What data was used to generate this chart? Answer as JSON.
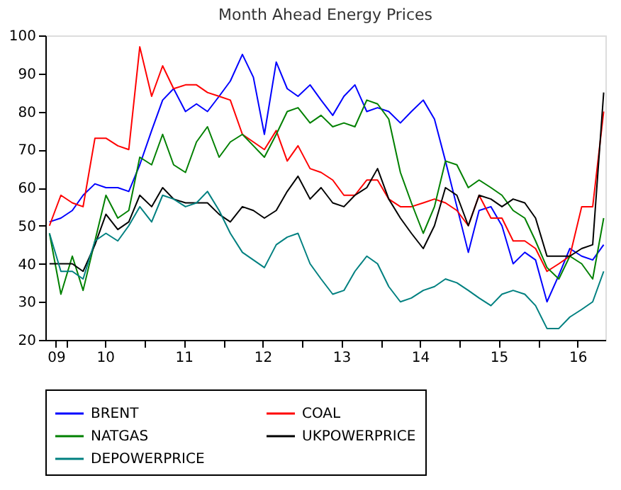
{
  "chart_data": {
    "type": "line",
    "title": "Month Ahead Energy Prices",
    "x": [
      "2009-10-16",
      "2009-12-08",
      "2010-01-30",
      "2010-03-21",
      "2010-05-15",
      "2010-07-05",
      "2010-08-29",
      "2010-10-19",
      "2010-12-09",
      "2011-02-02",
      "2011-03-25",
      "2011-05-15",
      "2011-07-09",
      "2011-08-29",
      "2011-10-19",
      "2011-12-12",
      "2012-02-02",
      "2012-03-29",
      "2012-05-19",
      "2012-07-09",
      "2012-09-02",
      "2012-10-23",
      "2012-12-12",
      "2013-02-06",
      "2013-03-29",
      "2013-05-22",
      "2013-07-13",
      "2013-09-02",
      "2013-10-27",
      "2013-12-16",
      "2014-02-06",
      "2014-04-01",
      "2014-05-22",
      "2014-07-16",
      "2014-09-06",
      "2014-10-27",
      "2014-12-19",
      "2015-02-10",
      "2015-04-01",
      "2015-05-26",
      "2015-07-16",
      "2015-09-06",
      "2015-10-30",
      "2015-12-19",
      "2016-02-10",
      "2016-04-05",
      "2016-05-26",
      "2016-07-20",
      "2016-09-09",
      "2016-10-30"
    ],
    "series": [
      {
        "name": "BRENT",
        "color": "#0000ff",
        "values": [
          51,
          52,
          54,
          58,
          61,
          60,
          60,
          59,
          66,
          75,
          83,
          86,
          80,
          82,
          80,
          84,
          88,
          95,
          89,
          74,
          93,
          86,
          84,
          87,
          83,
          79,
          84,
          87,
          80,
          81,
          80,
          77,
          80,
          83,
          78,
          67,
          55,
          43,
          54,
          55,
          50,
          40,
          43,
          41,
          30,
          37,
          44,
          42,
          41,
          45
        ]
      },
      {
        "name": "COAL",
        "color": "#ff0000",
        "values": [
          50,
          58,
          56,
          55,
          73,
          73,
          71,
          70,
          97,
          84,
          92,
          86,
          87,
          87,
          85,
          84,
          83,
          74,
          72,
          70,
          75,
          67,
          71,
          65,
          64,
          62,
          58,
          58,
          62,
          62,
          57,
          55,
          55,
          56,
          57,
          56,
          54,
          50,
          58,
          52,
          52,
          46,
          46,
          44,
          38,
          40,
          42,
          55,
          55,
          80
        ]
      },
      {
        "name": "NATGAS",
        "color": "#008000",
        "values": [
          48,
          32,
          42,
          33,
          46,
          58,
          52,
          54,
          68,
          66,
          74,
          66,
          64,
          72,
          76,
          68,
          72,
          74,
          71,
          68,
          74,
          80,
          81,
          77,
          79,
          76,
          77,
          76,
          83,
          82,
          78,
          64,
          56,
          48,
          55,
          67,
          66,
          60,
          62,
          60,
          58,
          54,
          52,
          46,
          39,
          36,
          42,
          40,
          36,
          52
        ]
      },
      {
        "name": "UKPOWERPRICE",
        "color": "#000000",
        "values": [
          40,
          40,
          40,
          38,
          45,
          53,
          49,
          51,
          58,
          55,
          60,
          57,
          56,
          56,
          56,
          53,
          51,
          55,
          54,
          52,
          54,
          59,
          63,
          57,
          60,
          56,
          55,
          58,
          60,
          65,
          57,
          52,
          48,
          44,
          50,
          60,
          58,
          50,
          58,
          57,
          55,
          57,
          56,
          52,
          42,
          42,
          42,
          44,
          45,
          85
        ]
      },
      {
        "name": "DEPOWERPRICE",
        "color": "#008080",
        "values": [
          48,
          38,
          38,
          36,
          46,
          48,
          46,
          50,
          55,
          51,
          58,
          57,
          55,
          56,
          59,
          54,
          48,
          43,
          41,
          39,
          45,
          47,
          48,
          40,
          36,
          32,
          33,
          38,
          42,
          40,
          34,
          30,
          31,
          33,
          34,
          36,
          35,
          33,
          31,
          29,
          32,
          33,
          32,
          29,
          23,
          23,
          26,
          28,
          30,
          38
        ]
      }
    ],
    "xlim": [
      "2009-09-27",
      "2016-11-07"
    ],
    "xticks": [
      {
        "value": "2009-11-15",
        "label": "09"
      },
      {
        "value": "2010-01-01",
        "label": null
      },
      {
        "value": "2010-07-01",
        "label": "10"
      },
      {
        "value": "2011-01-01",
        "label": null
      },
      {
        "value": "2011-07-01",
        "label": "11"
      },
      {
        "value": "2012-01-01",
        "label": null
      },
      {
        "value": "2012-07-01",
        "label": "12"
      },
      {
        "value": "2013-01-01",
        "label": null
      },
      {
        "value": "2013-07-01",
        "label": "13"
      },
      {
        "value": "2014-01-01",
        "label": null
      },
      {
        "value": "2014-07-01",
        "label": "14"
      },
      {
        "value": "2015-01-01",
        "label": null
      },
      {
        "value": "2015-07-01",
        "label": "15"
      },
      {
        "value": "2016-01-01",
        "label": null
      },
      {
        "value": "2016-07-01",
        "label": "16"
      }
    ],
    "ylim": [
      20,
      100
    ],
    "yticks": [
      20,
      30,
      40,
      50,
      60,
      70,
      80,
      90,
      100
    ],
    "grid": false,
    "legend": "bottom"
  }
}
